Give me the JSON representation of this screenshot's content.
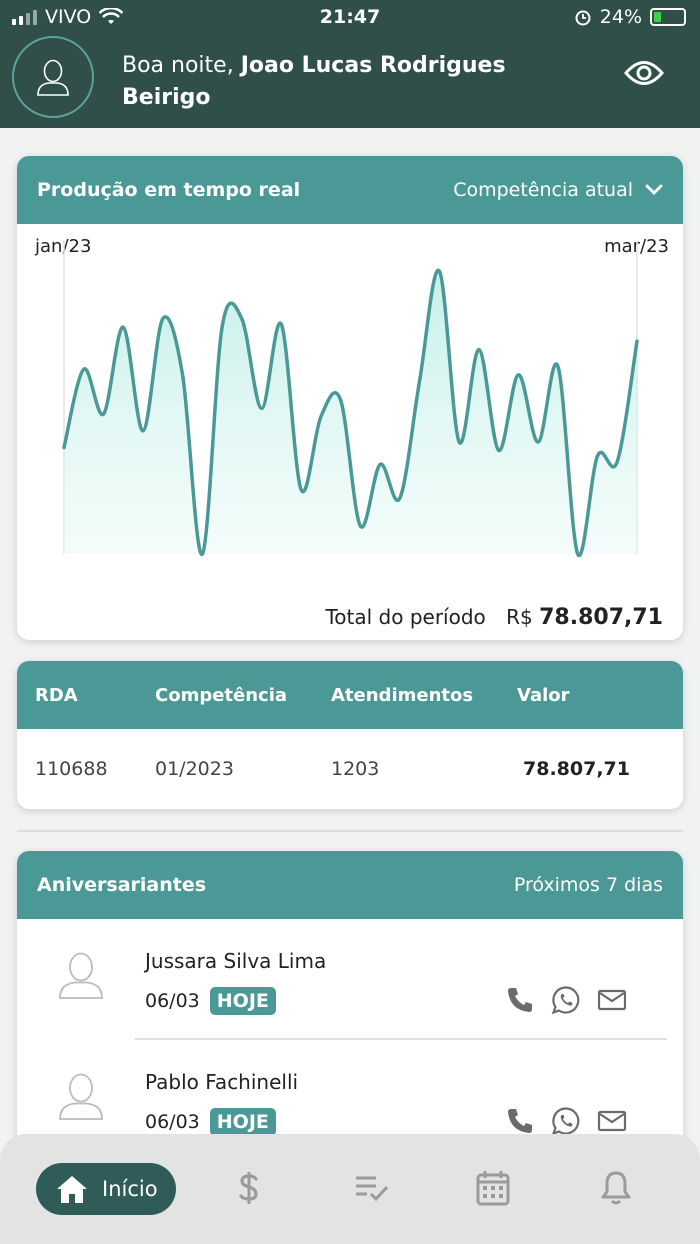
{
  "status_bar": {
    "carrier": "VIVO",
    "time": "21:47",
    "battery": "24%",
    "battery_level": 0.24
  },
  "header": {
    "greeting": "Boa noite,",
    "user_name": "Joao Lucas Rodrigues Beirigo"
  },
  "production": {
    "title": "Produção em tempo real",
    "filter": "Competência atual",
    "total_label": "Total do período",
    "total_currency": "R$",
    "total_value": "78.807,71"
  },
  "chart_data": {
    "type": "area",
    "x_start_label": "jan/23",
    "x_end_label": "mar/23",
    "values": [
      38,
      66,
      50,
      81,
      44,
      84,
      64,
      0,
      81,
      84,
      52,
      82,
      23,
      49,
      55,
      10,
      32,
      20,
      62,
      101,
      40,
      73,
      37,
      64,
      40,
      67,
      0,
      35,
      33,
      76
    ],
    "ylim": [
      0,
      105
    ],
    "color": "#4b9997"
  },
  "rda": {
    "headers": [
      "RDA",
      "Competência",
      "Atendimentos",
      "Valor"
    ],
    "row": [
      "110688",
      "01/2023",
      "1203",
      "78.807,71"
    ]
  },
  "birthdays": {
    "title": "Aniversariantes",
    "range": "Próximos 7 dias",
    "people": [
      {
        "name": "Jussara Silva Lima",
        "date": "06/03",
        "badge": "HOJE"
      },
      {
        "name": "Pablo Fachinelli",
        "date": "06/03",
        "badge": "HOJE"
      }
    ]
  },
  "nav": {
    "home_label": "Início"
  }
}
